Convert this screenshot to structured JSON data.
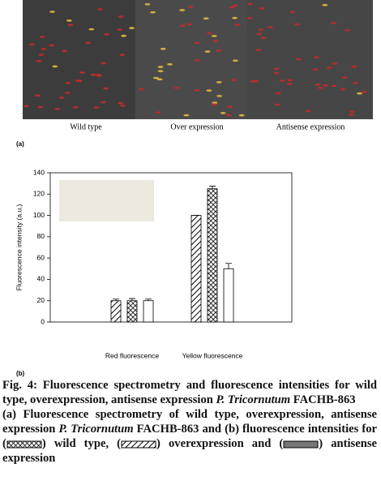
{
  "figure_a": {
    "panels": [
      "Wild type",
      "Over expression",
      "Antisense expression"
    ],
    "label": "(a)"
  },
  "chart_data": {
    "type": "bar",
    "label": "(b)",
    "ylabel": "Fluorescence intensity (a.u.)",
    "categories": [
      "Red fluorescence",
      "Yellow fluorescence"
    ],
    "series": [
      {
        "pattern": "diagonal",
        "color": "#000000",
        "values": [
          20,
          100
        ],
        "errors": [
          1.5,
          0
        ]
      },
      {
        "pattern": "crosshatch",
        "color": "#000000",
        "values": [
          20,
          125
        ],
        "errors": [
          2,
          2.5
        ]
      },
      {
        "pattern": "none",
        "color": "#000000",
        "values": [
          20,
          50
        ],
        "errors": [
          1.5,
          5
        ]
      }
    ],
    "ylim": [
      0,
      140
    ],
    "yticks": [
      0,
      20,
      40,
      60,
      80,
      100,
      120,
      140
    ],
    "legend_color": "#ece9e0"
  },
  "caption": {
    "title": [
      "Fig. 4: Fluorescence spectrometry and fluorescence intensities for wild type, overexpression, antisense expression ",
      "P. Tricornutum",
      " FACHB-863"
    ],
    "body": [
      "(a) Fluorescence spectrometry of wild type, overexpression, antisense expression ",
      "P. Tricornutum",
      " FACHB-863 and (b) fluorescence intensities for (",
      ") wild type, (",
      ") overexpression and (",
      ") antisense expression"
    ]
  }
}
